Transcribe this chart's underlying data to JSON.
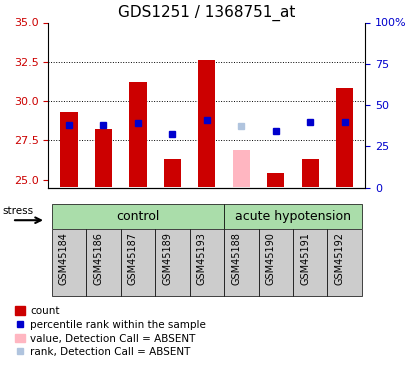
{
  "title": "GDS1251 / 1368751_at",
  "samples": [
    "GSM45184",
    "GSM45186",
    "GSM45187",
    "GSM45189",
    "GSM45193",
    "GSM45188",
    "GSM45190",
    "GSM45191",
    "GSM45192"
  ],
  "n_control": 5,
  "n_acute": 4,
  "red_bar_values": [
    29.3,
    28.2,
    31.2,
    26.3,
    32.6,
    null,
    25.4,
    26.3,
    30.8
  ],
  "blue_square_values": [
    28.5,
    28.5,
    28.6,
    27.9,
    28.8,
    null,
    28.1,
    28.7,
    28.7
  ],
  "pink_bar_values": [
    null,
    null,
    null,
    null,
    null,
    26.9,
    null,
    null,
    null
  ],
  "lavender_square_values": [
    null,
    null,
    null,
    null,
    null,
    28.4,
    null,
    null,
    null
  ],
  "ylim_left": [
    24.5,
    35
  ],
  "ylim_right": [
    0,
    100
  ],
  "left_ticks": [
    25,
    27.5,
    30,
    32.5,
    35
  ],
  "right_ticks": [
    0,
    25,
    50,
    75,
    100
  ],
  "right_tick_labels": [
    "0",
    "25",
    "50",
    "75",
    "100%"
  ],
  "baseline": 24.5,
  "bar_width": 0.5,
  "red_color": "#CC0000",
  "pink_color": "#FFB6C1",
  "blue_color": "#0000CD",
  "lavender_color": "#B0C4DE",
  "group_color_light": "#AADDAA",
  "group_color_dark": "#66BB66",
  "sample_bg_color": "#CCCCCC",
  "stress_label": "stress",
  "group_label_fontsize": 9,
  "tick_fontsize": 8,
  "title_fontsize": 11,
  "legend_fontsize": 7.5
}
